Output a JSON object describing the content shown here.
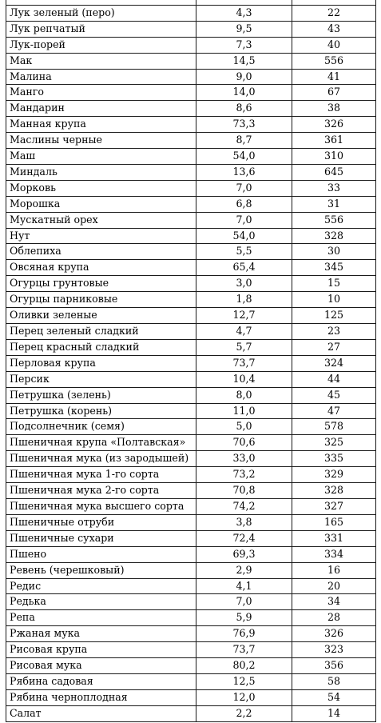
{
  "table": {
    "columns": [
      "name",
      "carbs",
      "kcal"
    ],
    "header_row": [
      "",
      "",
      ""
    ],
    "rows": [
      [
        "Лук зеленый (перо)",
        "4,3",
        "22"
      ],
      [
        "Лук репчатый",
        "9,5",
        "43"
      ],
      [
        "Лук-порей",
        "7,3",
        "40"
      ],
      [
        "Мак",
        "14,5",
        "556"
      ],
      [
        "Малина",
        "9,0",
        "41"
      ],
      [
        "Манго",
        "14,0",
        "67"
      ],
      [
        "Мандарин",
        "8,6",
        "38"
      ],
      [
        "Манная крупа",
        "73,3",
        "326"
      ],
      [
        "Маслины черные",
        "8,7",
        "361"
      ],
      [
        "Маш",
        "54,0",
        "310"
      ],
      [
        "Миндаль",
        "13,6",
        "645"
      ],
      [
        "Морковь",
        "7,0",
        "33"
      ],
      [
        "Морошка",
        "6,8",
        "31"
      ],
      [
        "Мускатный орех",
        "7,0",
        "556"
      ],
      [
        "Нут",
        "54,0",
        "328"
      ],
      [
        "Облепиха",
        "5,5",
        "30"
      ],
      [
        "Овсяная крупа",
        "65,4",
        "345"
      ],
      [
        "Огурцы грунтовые",
        "3,0",
        "15"
      ],
      [
        "Огурцы парниковые",
        "1,8",
        "10"
      ],
      [
        "Оливки зеленые",
        "12,7",
        "125"
      ],
      [
        "Перец зеленый сладкий",
        "4,7",
        "23"
      ],
      [
        "Перец красный сладкий",
        "5,7",
        "27"
      ],
      [
        "Перловая крупа",
        "73,7",
        "324"
      ],
      [
        "Персик",
        "10,4",
        "44"
      ],
      [
        "Петрушка (зелень)",
        "8,0",
        "45"
      ],
      [
        "Петрушка (корень)",
        "11,0",
        "47"
      ],
      [
        "Подсолнечник (семя)",
        "5,0",
        "578"
      ],
      [
        "Пшеничная крупа «Полтавская»",
        "70,6",
        "325"
      ],
      [
        "Пшеничная мука (из зародышей)",
        "33,0",
        "335"
      ],
      [
        "Пшеничная мука 1-го сорта",
        "73,2",
        "329"
      ],
      [
        "Пшеничная мука 2-го сорта",
        "70,8",
        "328"
      ],
      [
        "Пшеничная мука высшего сорта",
        "74,2",
        "327"
      ],
      [
        "Пшеничные отруби",
        "3,8",
        "165"
      ],
      [
        "Пшеничные сухари",
        "72,4",
        "331"
      ],
      [
        "Пшено",
        "69,3",
        "334"
      ],
      [
        "Ревень (черешковый)",
        "2,9",
        "16"
      ],
      [
        "Редис",
        "4,1",
        "20"
      ],
      [
        "Редька",
        "7,0",
        "34"
      ],
      [
        "Репа",
        "5,9",
        "28"
      ],
      [
        "Ржаная мука",
        "76,9",
        "326"
      ],
      [
        "Рисовая крупа",
        "73,7",
        "323"
      ],
      [
        "Рисовая мука",
        "80,2",
        "356"
      ],
      [
        "Рябина садовая",
        "12,5",
        "58"
      ],
      [
        "Рябина черноплодная",
        "12,0",
        "54"
      ],
      [
        "Салат",
        "2,2",
        "14"
      ]
    ]
  }
}
